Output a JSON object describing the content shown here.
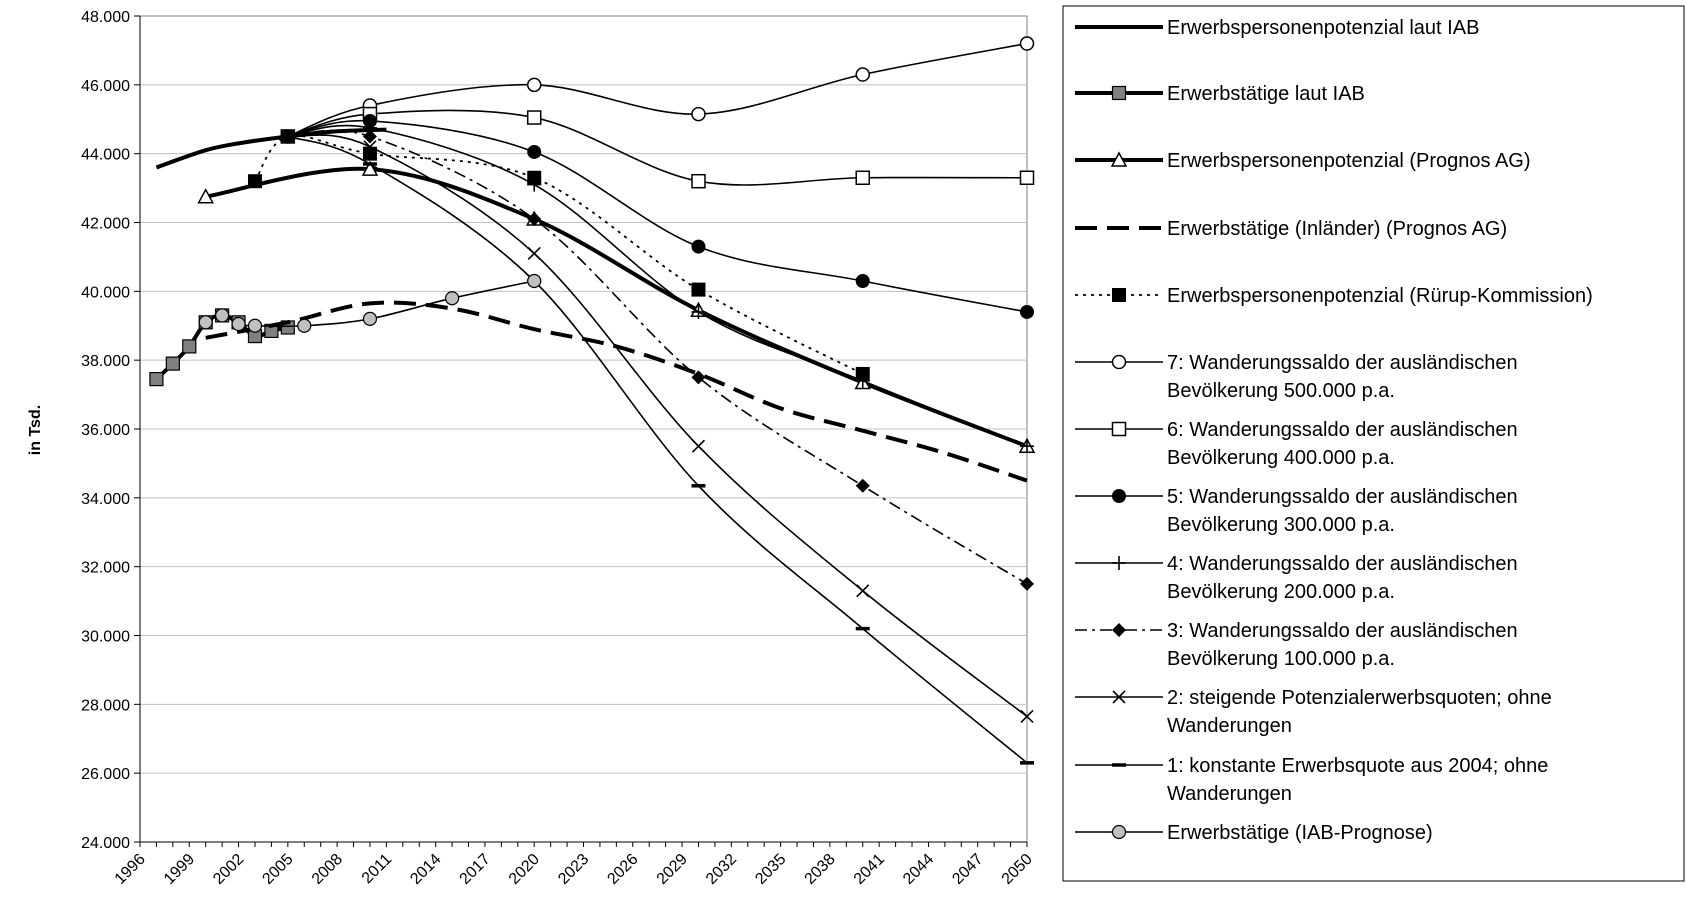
{
  "chart_data": {
    "type": "line",
    "title": "",
    "xlabel": "",
    "ylabel": "in Tsd.",
    "xlim": [
      1996,
      2050
    ],
    "ylim": [
      24000,
      48000
    ],
    "x_ticks": [
      "1996",
      "1999",
      "2002",
      "2005",
      "2008",
      "2011",
      "2014",
      "2017",
      "2020",
      "2023",
      "2026",
      "2029",
      "2032",
      "2035",
      "2038",
      "2041",
      "2044",
      "2047",
      "2050"
    ],
    "y_ticks": [
      "24.000",
      "26.000",
      "28.000",
      "30.000",
      "32.000",
      "34.000",
      "36.000",
      "38.000",
      "40.000",
      "42.000",
      "44.000",
      "46.000",
      "48.000"
    ],
    "grid": "horizontal",
    "legend_position": "right",
    "series": [
      {
        "name": "Erwerbspersonenpotenzial laut IAB",
        "style": "thick",
        "marker": "none",
        "x": [
          1997,
          2000,
          2002,
          2005,
          2008,
          2011
        ],
        "y": [
          43600,
          44100,
          44300,
          44500,
          44650,
          44700
        ]
      },
      {
        "name": "Erwerbstätige laut IAB",
        "style": "thick",
        "marker": "square-gray",
        "x": [
          1997,
          1998,
          1999,
          2000,
          2001,
          2002,
          2003,
          2004,
          2005
        ],
        "y": [
          37450,
          37900,
          38400,
          39100,
          39300,
          39100,
          38700,
          38850,
          38950
        ]
      },
      {
        "name": "Erwerbspersonenpotenzial (Prognos AG)",
        "style": "thick",
        "marker": "triangle-open",
        "x": [
          2000,
          2010,
          2020,
          2030,
          2040,
          2050
        ],
        "y": [
          42750,
          43550,
          42100,
          39450,
          37350,
          35500
        ]
      },
      {
        "name": "Erwerbstätige (Inländer) (Prognos AG)",
        "style": "thick-dash",
        "marker": "none",
        "x": [
          2000,
          2005,
          2010,
          2015,
          2020,
          2025,
          2030,
          2035,
          2040,
          2045,
          2050
        ],
        "y": [
          38650,
          39100,
          39650,
          39500,
          38900,
          38400,
          37600,
          36600,
          35950,
          35300,
          34500
        ]
      },
      {
        "name": "Erwerbspersonenpotenzial (Rürup-Kommission)",
        "style": "dot",
        "marker": "square-filled",
        "x": [
          2003,
          2005,
          2010,
          2020,
          2030,
          2040
        ],
        "y": [
          43200,
          44500,
          44000,
          43300,
          40050,
          37600
        ]
      },
      {
        "name": "7: Wanderungssaldo der ausländischen\nBevölkerung 500.000 p.a.",
        "style": "thin",
        "marker": "circle-open",
        "x": [
          2005,
          2010,
          2020,
          2030,
          2040,
          2050
        ],
        "y": [
          44500,
          45400,
          46000,
          45150,
          46300,
          47200
        ]
      },
      {
        "name": "6: Wanderungssaldo der ausländischen\nBevölkerung 400.000 p.a.",
        "style": "thin",
        "marker": "square-open",
        "x": [
          2005,
          2010,
          2020,
          2030,
          2040,
          2050
        ],
        "y": [
          44500,
          45150,
          45050,
          43200,
          43300,
          43300
        ]
      },
      {
        "name": "5: Wanderungssaldo der ausländischen\nBevölkerung 300.000 p.a.",
        "style": "thin",
        "marker": "circle-filled",
        "x": [
          2005,
          2010,
          2020,
          2030,
          2040,
          2050
        ],
        "y": [
          44500,
          44950,
          44050,
          41300,
          40300,
          39400
        ]
      },
      {
        "name": "4: Wanderungssaldo der ausländischen\nBevölkerung 200.000 p.a.",
        "style": "thin",
        "marker": "plus",
        "x": [
          2005,
          2010,
          2020,
          2030,
          2040,
          2050
        ],
        "y": [
          44500,
          44750,
          43100,
          39400,
          37400,
          35500
        ]
      },
      {
        "name": "3: Wanderungssaldo der ausländischen\nBevölkerung 100.000 p.a.",
        "style": "dashdot",
        "marker": "diamond-filled",
        "x": [
          2005,
          2010,
          2020,
          2030,
          2040,
          2050
        ],
        "y": [
          44500,
          44500,
          42100,
          37500,
          34350,
          31500
        ]
      },
      {
        "name": "2: steigende Potenzialerwerbsquoten; ohne\nWanderungen",
        "style": "thin",
        "marker": "x",
        "x": [
          2005,
          2010,
          2020,
          2030,
          2040,
          2050
        ],
        "y": [
          44500,
          44200,
          41100,
          35500,
          31300,
          27650
        ]
      },
      {
        "name": "1: konstante Erwerbsquote aus 2004; ohne\nWanderungen",
        "style": "thin",
        "marker": "dash",
        "x": [
          2005,
          2010,
          2020,
          2030,
          2040,
          2050
        ],
        "y": [
          44500,
          43700,
          40300,
          34350,
          30200,
          26300
        ]
      },
      {
        "name": "Erwerbstätige (IAB-Prognose)",
        "style": "thin",
        "marker": "circle-gray",
        "x": [
          2000,
          2001,
          2002,
          2003,
          2006,
          2010,
          2015,
          2020
        ],
        "y": [
          39100,
          39300,
          39050,
          39000,
          39000,
          39200,
          39800,
          40300
        ]
      }
    ]
  }
}
